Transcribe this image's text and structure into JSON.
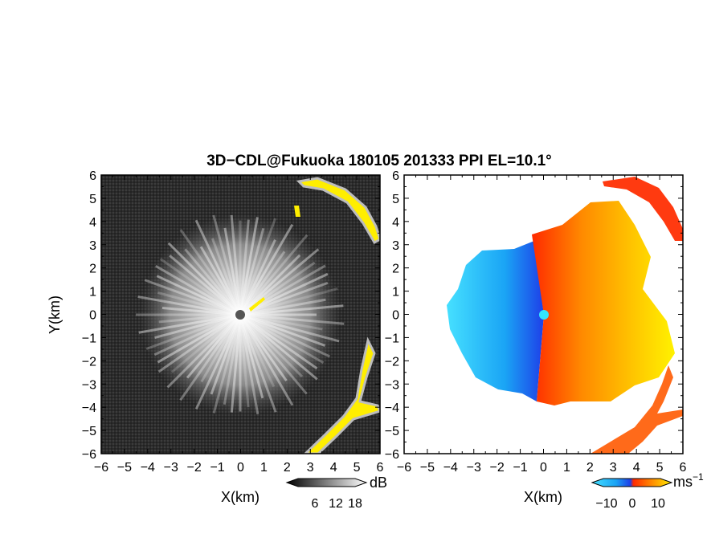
{
  "chart_data": {
    "title": "3D−CDL@Fukuoka 180105 201333 PPI EL=10.1°",
    "panels": [
      {
        "type": "heatmap",
        "field": "SNR",
        "colormap": "grayscale",
        "xlabel": "X(km)",
        "ylabel": "Y(km)",
        "xlim": [
          -6,
          6
        ],
        "ylim": [
          -6,
          6
        ],
        "xticks": [
          -6,
          -5,
          -4,
          -3,
          -2,
          -1,
          0,
          1,
          2,
          3,
          4,
          5,
          6
        ],
        "yticks": [
          -6,
          -5,
          -4,
          -3,
          -2,
          -1,
          0,
          1,
          2,
          3,
          4,
          5,
          6
        ],
        "highlight_color": "#ffee00",
        "colorbar": {
          "label": "dB",
          "ticks": [
            6,
            12,
            18
          ]
        }
      },
      {
        "type": "heatmap",
        "field": "Doppler velocity",
        "colormap": "cyan-blue-red-orange-yellow",
        "xlabel": "X(km)",
        "ylabel": "",
        "xlim": [
          -6,
          6
        ],
        "ylim": [
          -6,
          6
        ],
        "xticks": [
          -6,
          -5,
          -4,
          -3,
          -2,
          -1,
          0,
          1,
          2,
          3,
          4,
          5,
          6
        ],
        "yticks": [
          -6,
          -5,
          -4,
          -3,
          -2,
          -1,
          0,
          1,
          2,
          3,
          4,
          5,
          6
        ],
        "colorbar": {
          "label": "ms",
          "label_exponent": "−1",
          "ticks": [
            -10,
            0,
            10
          ],
          "tick_labels": [
            "−10",
            "0",
            "10"
          ]
        }
      }
    ]
  }
}
